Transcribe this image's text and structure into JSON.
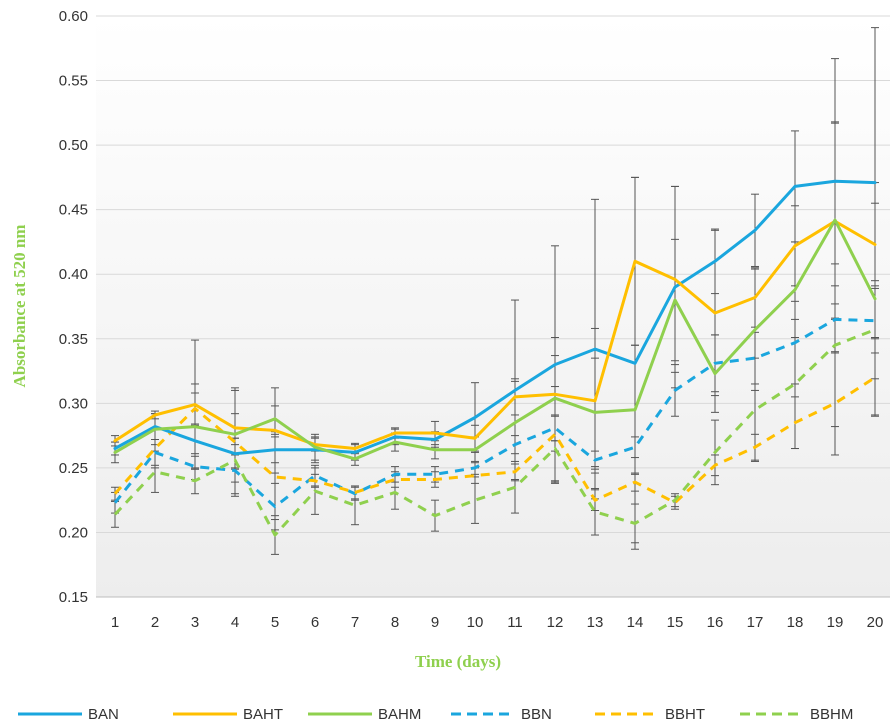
{
  "chart_data": {
    "type": "line",
    "xlabel": "Time (days)",
    "ylabel": "Absorbance at  520 nm",
    "ylim": [
      0.15,
      0.6
    ],
    "yticks": [
      "0.15",
      "0.20",
      "0.25",
      "0.30",
      "0.35",
      "0.40",
      "0.45",
      "0.50",
      "0.55",
      "0.60"
    ],
    "x": [
      1,
      2,
      3,
      4,
      5,
      6,
      7,
      8,
      9,
      10,
      11,
      12,
      13,
      14,
      15,
      16,
      17,
      18,
      19,
      20
    ],
    "grid": "horizontal",
    "legend_position": "bottom",
    "series": [
      {
        "name": "BAN",
        "color": "#1aa6de",
        "dash": "solid",
        "values": [
          0.265,
          0.282,
          0.271,
          0.261,
          0.264,
          0.264,
          0.262,
          0.274,
          0.272,
          0.289,
          0.31,
          0.33,
          0.342,
          0.331,
          0.39,
          0.41,
          0.434,
          0.468,
          0.472,
          0.471
        ],
        "error": [
          0.005,
          0.01,
          0.012,
          0.012,
          0.01,
          0.01,
          0.006,
          0.006,
          0.006,
          0.027,
          0.07,
          0.092,
          0.116,
          0.144,
          0.078,
          0.025,
          0.028,
          0.043,
          0.095,
          0.12
        ]
      },
      {
        "name": "BAHT",
        "color": "#ffbf00",
        "dash": "solid",
        "values": [
          0.271,
          0.291,
          0.299,
          0.281,
          0.279,
          0.268,
          0.265,
          0.277,
          0.277,
          0.273,
          0.305,
          0.307,
          0.302,
          0.41,
          0.396,
          0.37,
          0.382,
          0.422,
          0.441,
          0.423
        ],
        "error": [
          0.004,
          0.003,
          0.05,
          0.031,
          0.033,
          0.005,
          0.004,
          0.004,
          0.009,
          0.01,
          0.014,
          0.044,
          0.056,
          0.065,
          0.072,
          0.064,
          0.023,
          0.031,
          0.076,
          0.032
        ]
      },
      {
        "name": "BAHM",
        "color": "#8fd04e",
        "dash": "solid",
        "values": [
          0.262,
          0.28,
          0.282,
          0.276,
          0.288,
          0.266,
          0.257,
          0.27,
          0.264,
          0.264,
          0.285,
          0.304,
          0.293,
          0.295,
          0.38,
          0.323,
          0.357,
          0.388,
          0.442,
          0.381
        ],
        "error": [
          0.008,
          0.012,
          0.033,
          0.016,
          0.01,
          0.01,
          0.005,
          0.007,
          0.007,
          0.01,
          0.032,
          0.033,
          0.042,
          0.05,
          0.047,
          0.03,
          0.047,
          0.037,
          0.076,
          0.09
        ]
      },
      {
        "name": "BBN",
        "color": "#1aa6de",
        "dash": "dashed",
        "values": [
          0.223,
          0.262,
          0.251,
          0.248,
          0.22,
          0.244,
          0.23,
          0.245,
          0.245,
          0.25,
          0.268,
          0.281,
          0.256,
          0.266,
          0.31,
          0.331,
          0.335,
          0.347,
          0.365,
          0.364
        ],
        "error": [
          0.008,
          0.01,
          0.01,
          0.02,
          0.018,
          0.008,
          0.005,
          0.006,
          0.006,
          0.005,
          0.007,
          0.01,
          0.007,
          0.008,
          0.02,
          0.022,
          0.02,
          0.032,
          0.026,
          0.025
        ]
      },
      {
        "name": "BBHT",
        "color": "#ffbf00",
        "dash": "dashed",
        "values": [
          0.23,
          0.265,
          0.296,
          0.27,
          0.243,
          0.24,
          0.231,
          0.241,
          0.241,
          0.244,
          0.247,
          0.276,
          0.225,
          0.239,
          0.223,
          0.252,
          0.266,
          0.285,
          0.3,
          0.32
        ],
        "error": [
          0.005,
          0.015,
          0.012,
          0.04,
          0.033,
          0.005,
          0.005,
          0.006,
          0.006,
          0.006,
          0.006,
          0.037,
          0.008,
          0.007,
          0.005,
          0.008,
          0.01,
          0.02,
          0.04,
          0.03
        ]
      },
      {
        "name": "BBHM",
        "color": "#8fd04e",
        "dash": "dashed",
        "values": [
          0.214,
          0.247,
          0.24,
          0.256,
          0.198,
          0.232,
          0.221,
          0.231,
          0.213,
          0.225,
          0.235,
          0.265,
          0.216,
          0.207,
          0.225,
          0.262,
          0.295,
          0.315,
          0.345,
          0.357
        ],
        "error": [
          0.01,
          0.016,
          0.01,
          0.017,
          0.015,
          0.018,
          0.015,
          0.013,
          0.012,
          0.018,
          0.02,
          0.025,
          0.018,
          0.015,
          0.005,
          0.025,
          0.04,
          0.05,
          0.063,
          0.038
        ]
      }
    ]
  }
}
